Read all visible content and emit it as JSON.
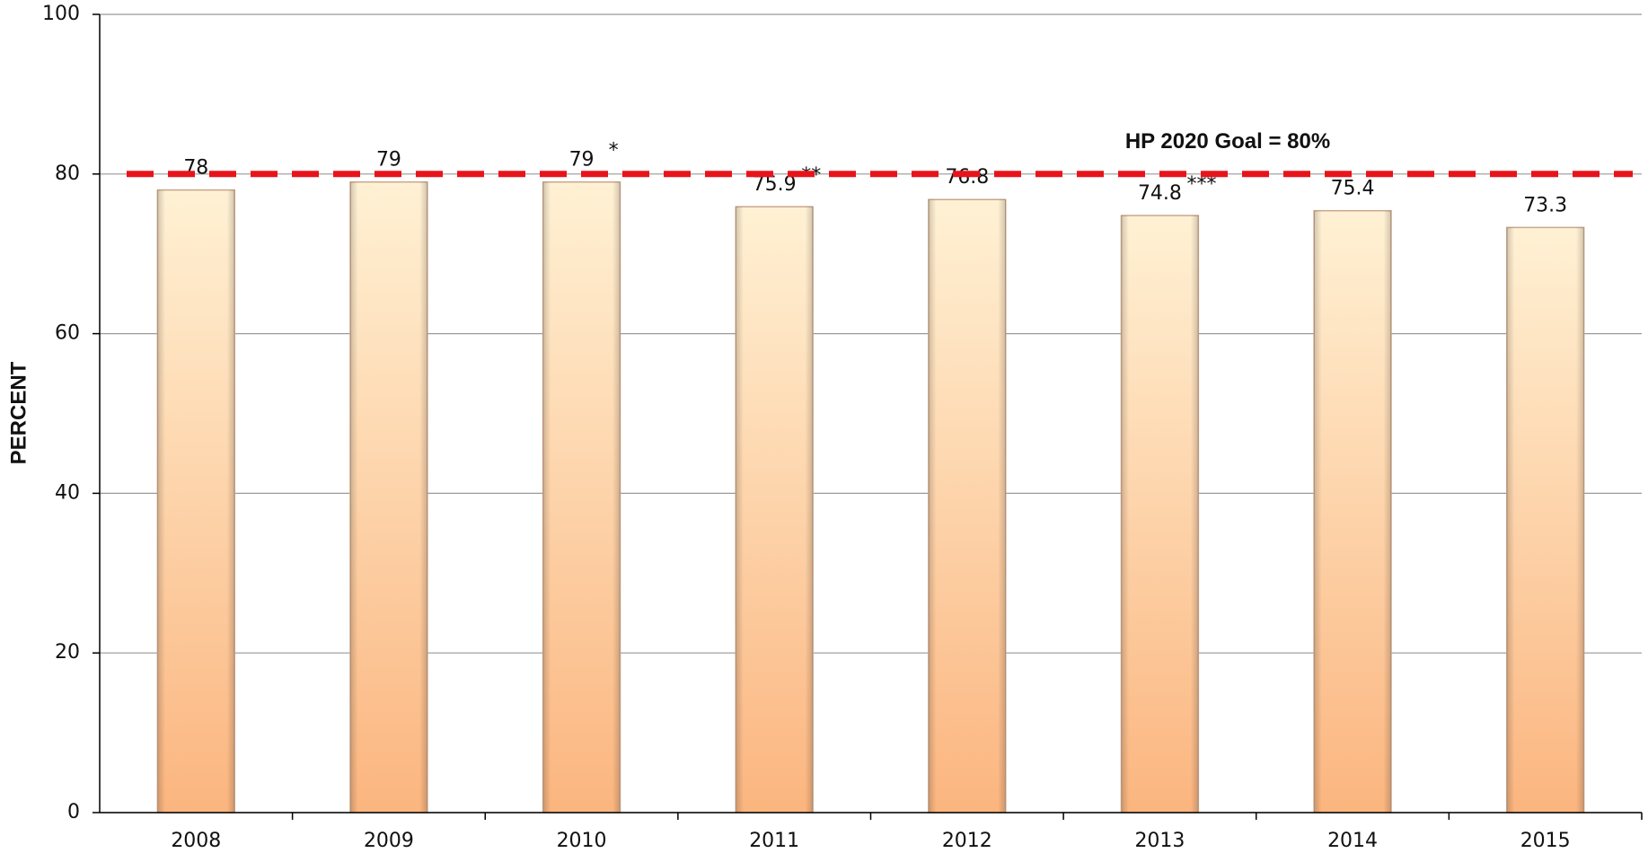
{
  "chart_data": {
    "type": "bar",
    "y_label": "PERCENT",
    "categories": [
      "2008",
      "2009",
      "2010",
      "2011",
      "2012",
      "2013",
      "2014",
      "2015"
    ],
    "values": [
      78,
      79,
      79,
      75.9,
      76.8,
      74.8,
      75.4,
      73.3
    ],
    "color": "#fbb57f",
    "annotations": [
      {
        "category": "2010",
        "text": "*"
      },
      {
        "category": "2011",
        "text": "**"
      },
      {
        "category": "2013",
        "text": "***"
      }
    ],
    "goal": {
      "value": 80,
      "label": "HP 2020 Goal = 80%",
      "color": "#e8141b"
    },
    "ylim": [
      0,
      100
    ],
    "yticks": [
      0,
      20,
      40,
      60,
      80,
      100
    ],
    "grid": true
  }
}
